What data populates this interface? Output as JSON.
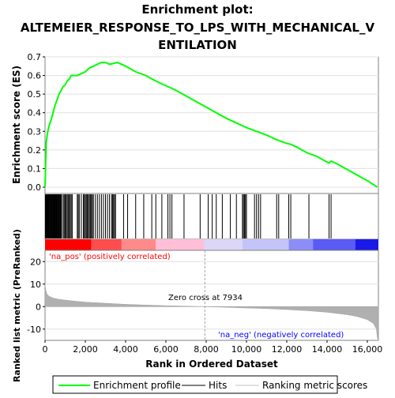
{
  "chart_data": {
    "type": "line",
    "title": "Enrichment plot: ALTEMEIER_RESPONSE_TO_LPS_WITH_MECHANICAL_VENTILATION",
    "title_lines": [
      "Enrichment plot:",
      "ALTEMEIER_RESPONSE_TO_LPS_WITH_MECHANICAL_V",
      "ENTILATION"
    ],
    "es_panel": {
      "ylabel": "Enrichment score (ES)",
      "ylim": [
        0.0,
        0.7
      ],
      "yticks": [
        "0.0",
        "0.1",
        "0.2",
        "0.3",
        "0.4",
        "0.5",
        "0.6",
        "0.7"
      ],
      "series": [
        {
          "name": "Enrichment profile",
          "color": "#00ff00",
          "x": [
            0,
            60,
            120,
            200,
            300,
            400,
            500,
            600,
            700,
            800,
            900,
            1000,
            1100,
            1200,
            1300,
            1400,
            1600,
            1800,
            2000,
            2100,
            2200,
            2400,
            2600,
            2800,
            3000,
            3200,
            3400,
            3600,
            4000,
            4500,
            5000,
            5500,
            6000,
            6500,
            7000,
            7500,
            8000,
            8500,
            9000,
            9500,
            10000,
            10500,
            11000,
            11500,
            12000,
            12200,
            12500,
            13000,
            13500,
            14000,
            14100,
            14200,
            14500,
            15000,
            15500,
            16000,
            16500
          ],
          "y": [
            0.0,
            0.24,
            0.29,
            0.33,
            0.36,
            0.4,
            0.44,
            0.47,
            0.5,
            0.52,
            0.54,
            0.55,
            0.57,
            0.58,
            0.6,
            0.6,
            0.6,
            0.61,
            0.62,
            0.63,
            0.64,
            0.65,
            0.66,
            0.67,
            0.67,
            0.66,
            0.665,
            0.67,
            0.65,
            0.62,
            0.6,
            0.57,
            0.545,
            0.52,
            0.49,
            0.46,
            0.43,
            0.4,
            0.37,
            0.345,
            0.32,
            0.3,
            0.28,
            0.255,
            0.235,
            0.23,
            0.215,
            0.185,
            0.165,
            0.135,
            0.13,
            0.14,
            0.125,
            0.095,
            0.065,
            0.035,
            0.0
          ]
        }
      ]
    },
    "hits": [
      20,
      45,
      70,
      90,
      110,
      130,
      150,
      170,
      190,
      210,
      240,
      260,
      290,
      320,
      350,
      380,
      400,
      430,
      460,
      490,
      520,
      550,
      580,
      610,
      640,
      670,
      700,
      730,
      760,
      790,
      820,
      900,
      950,
      1000,
      1050,
      1100,
      1150,
      1200,
      1250,
      1300,
      1350,
      1600,
      1650,
      1700,
      1800,
      1900,
      1950,
      2000,
      2050,
      2100,
      2150,
      2200,
      2250,
      2300,
      2350,
      2400,
      2500,
      2600,
      2700,
      2800,
      2900,
      3000,
      3100,
      3200,
      3300,
      3350,
      3400,
      3450,
      3500,
      3900,
      4100,
      4500,
      4900,
      5300,
      5500,
      5800,
      6100,
      6200,
      6300,
      6900,
      7700,
      8100,
      8300,
      8500,
      8800,
      9200,
      9500,
      9800,
      9850,
      9900,
      9950,
      10000,
      10400,
      10500,
      10600,
      10700,
      11500,
      11600,
      12100,
      12200,
      13100,
      14100,
      14200
    ],
    "metric_panel": {
      "ylabel": "Ranked list metric (PreRanked)",
      "xlabel": "Rank in Ordered Dataset",
      "ylim": [
        -15,
        25
      ],
      "yticks": [
        "-10",
        "0",
        "10",
        "20"
      ],
      "xticks": [
        "0",
        "2,000",
        "4,000",
        "6,000",
        "8,000",
        "10,000",
        "12,000",
        "14,000",
        "16,000"
      ],
      "x": [
        0,
        30,
        100,
        200,
        400,
        700,
        1000,
        1500,
        2000,
        3000,
        4000,
        5000,
        6000,
        7000,
        7934,
        9000,
        10000,
        11000,
        12000,
        13000,
        14000,
        15000,
        15500,
        16000,
        16300,
        16450,
        16500,
        16550
      ],
      "values": [
        10,
        7.5,
        5.5,
        4.6,
        3.8,
        3.2,
        2.9,
        2.4,
        2.0,
        1.5,
        1.0,
        0.7,
        0.4,
        0.2,
        0.0,
        -0.3,
        -0.6,
        -0.9,
        -1.3,
        -1.8,
        -2.5,
        -3.6,
        -4.4,
        -5.8,
        -7.5,
        -10,
        -14,
        -15
      ],
      "zero_cross_label": "Zero cross at 7934",
      "zero_cross": 7934,
      "pos_label": "'na_pos' (positively correlated)",
      "neg_label": "'na_neg' (negatively correlated)"
    },
    "x_range": [
      0,
      16550
    ],
    "colors": {
      "profile": "#00ff00",
      "metric_fill": "#b0b0b0",
      "pos_text": "#ff0000",
      "neg_text": "#0000ff",
      "bar_red": "#ff0000",
      "bar_blue": "#0000ff"
    },
    "legend": {
      "position": "bottom",
      "items": [
        {
          "label": "Enrichment profile",
          "icon": "green-line-icon"
        },
        {
          "label": "Hits",
          "icon": "black-line-icon"
        },
        {
          "label": "Ranking metric scores",
          "icon": "gray-line-icon"
        }
      ]
    }
  }
}
